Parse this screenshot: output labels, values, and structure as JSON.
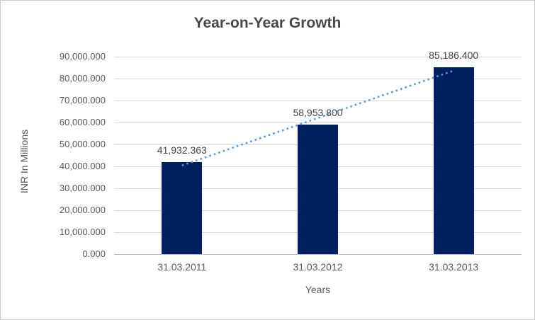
{
  "chart_data": {
    "type": "bar",
    "title": "Year-on-Year Growth",
    "xlabel": "Years",
    "ylabel": "INR In Millions",
    "categories": [
      "31.03.2011",
      "31.03.2012",
      "31.03.2013"
    ],
    "values": [
      41932.363,
      58953.8,
      85186.4
    ],
    "value_labels": [
      "41,932.363",
      "58,953.800",
      "85,186.400"
    ],
    "ylim": [
      0,
      90000
    ],
    "y_tick_step": 10000,
    "y_ticks": [
      {
        "value": 0,
        "label": "0.000"
      },
      {
        "value": 10000,
        "label": "10,000.000"
      },
      {
        "value": 20000,
        "label": "20,000.000"
      },
      {
        "value": 30000,
        "label": "30,000.000"
      },
      {
        "value": 40000,
        "label": "40,000.000"
      },
      {
        "value": 50000,
        "label": "50,000.000"
      },
      {
        "value": 60000,
        "label": "60,000.000"
      },
      {
        "value": 70000,
        "label": "70,000.000"
      },
      {
        "value": 80000,
        "label": "80,000.000"
      },
      {
        "value": 90000,
        "label": "90,000.000"
      }
    ],
    "grid": true,
    "legend": false,
    "colors": {
      "bar": "#002060",
      "trendline": "#5B9BD5",
      "title_text": "#484848",
      "axis_text": "#595959",
      "gridline": "#D9D9D9",
      "axis_line": "#BFBFBF",
      "background": "#FFFFFF",
      "border": "#C9C9C9"
    },
    "trendline": {
      "type": "linear",
      "style": "dotted",
      "color": "#5B9BD5",
      "start_category_index": 0,
      "end_category_index": 2,
      "start_value": 40400,
      "end_value": 83650
    }
  }
}
